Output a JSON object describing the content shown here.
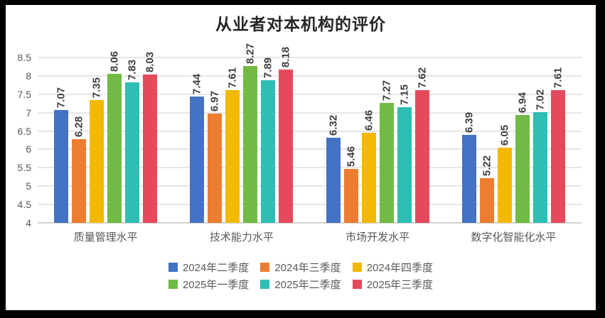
{
  "frame": {
    "background": "#000000",
    "canvas_background": "#ffffff"
  },
  "chart_data": {
    "type": "bar",
    "title": "从业者对本机构的评价",
    "categories": [
      "质量管理水平",
      "技术能力水平",
      "市场开发水平",
      "数字化智能化水平"
    ],
    "series": [
      {
        "name": "2024年二季度",
        "color": "#4472C4",
        "values": [
          7.07,
          7.44,
          6.32,
          6.39
        ]
      },
      {
        "name": "2024年三季度",
        "color": "#ED7D31",
        "values": [
          6.28,
          6.97,
          5.46,
          5.22
        ]
      },
      {
        "name": "2024年四季度",
        "color": "#F3B800",
        "values": [
          7.35,
          7.61,
          6.46,
          6.05
        ]
      },
      {
        "name": "2025年一季度",
        "color": "#71BA45",
        "values": [
          8.06,
          8.27,
          7.27,
          6.94
        ]
      },
      {
        "name": "2025年二季度",
        "color": "#2EBEB3",
        "values": [
          7.83,
          7.89,
          7.15,
          7.02
        ]
      },
      {
        "name": "2025年三季度",
        "color": "#E44A5C",
        "values": [
          8.03,
          8.18,
          7.62,
          7.61
        ]
      }
    ],
    "ylim": [
      4,
      8.5
    ],
    "ytick_step": 0.5,
    "yticks": [
      "8.5",
      "8",
      "7.5",
      "7",
      "6.5",
      "6",
      "5.5",
      "5",
      "4.5",
      "4"
    ],
    "grid": true,
    "legend_position": "bottom",
    "legend_rows": 2,
    "value_labels": "rotated-90-two-decimals"
  }
}
